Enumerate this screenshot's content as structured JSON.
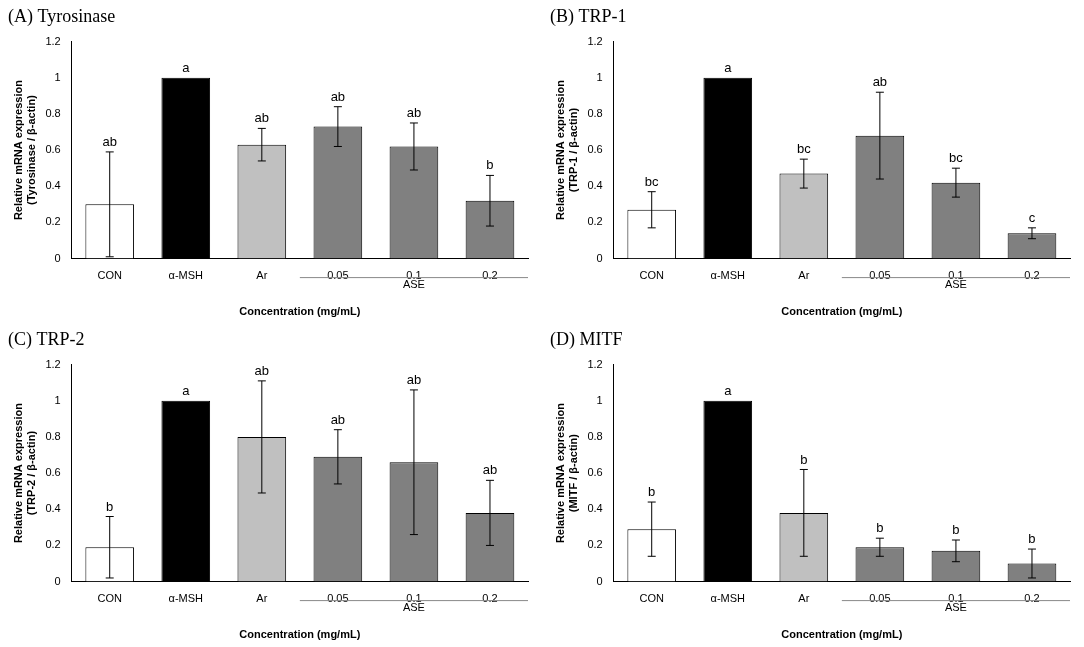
{
  "chart_data": [
    {
      "type": "bar",
      "title": "(A) Tyrosinase",
      "x_label": "Concentration (mg/mL)",
      "y_label": [
        "Relative mRNA expression",
        "(Tyrosinase / β-actin)"
      ],
      "categories": [
        "CON",
        "α-MSH",
        "Ar",
        "0.05",
        "0.1",
        "0.2"
      ],
      "values": [
        0.3,
        1.0,
        0.63,
        0.73,
        0.62,
        0.32
      ],
      "errors": [
        0.29,
        0,
        0.09,
        0.11,
        0.13,
        0.14
      ],
      "annotations": [
        "ab",
        "a",
        "ab",
        "ab",
        "ab",
        "b"
      ],
      "groups": [
        {
          "label": "ASE",
          "categories": [
            "0.05",
            "0.1",
            "0.2"
          ]
        }
      ],
      "colors": [
        "#ffffff",
        "#000000",
        "#c0c0c0",
        "#808080",
        "#808080",
        "#808080"
      ],
      "ylim": [
        0,
        1.2
      ],
      "yticks": [
        0,
        0.2,
        0.4,
        0.6,
        0.8,
        1,
        1.2
      ],
      "grid": false
    },
    {
      "type": "bar",
      "title": "(B) TRP-1",
      "x_label": "Concentration (mg/mL)",
      "y_label": [
        "Relative mRNA expression",
        "(TRP-1 / β-actin)"
      ],
      "categories": [
        "CON",
        "α-MSH",
        "Ar",
        "0.05",
        "0.1",
        "0.2"
      ],
      "values": [
        0.27,
        1.0,
        0.47,
        0.68,
        0.42,
        0.14
      ],
      "errors": [
        0.1,
        0,
        0.08,
        0.24,
        0.08,
        0.03
      ],
      "annotations": [
        "bc",
        "a",
        "bc",
        "ab",
        "bc",
        "c"
      ],
      "groups": [
        {
          "label": "ASE",
          "categories": [
            "0.05",
            "0.1",
            "0.2"
          ]
        }
      ],
      "colors": [
        "#ffffff",
        "#000000",
        "#c0c0c0",
        "#808080",
        "#808080",
        "#808080"
      ],
      "ylim": [
        0,
        1.2
      ],
      "yticks": [
        0,
        0.2,
        0.4,
        0.6,
        0.8,
        1,
        1.2
      ],
      "grid": false
    },
    {
      "type": "bar",
      "title": "(C) TRP-2",
      "x_label": "Concentration (mg/mL)",
      "y_label": [
        "Relative mRNA expression",
        "(TRP-2 / β-actin)"
      ],
      "categories": [
        "CON",
        "α-MSH",
        "Ar",
        "0.05",
        "0.1",
        "0.2"
      ],
      "values": [
        0.19,
        1.0,
        0.8,
        0.69,
        0.66,
        0.38
      ],
      "errors": [
        0.17,
        0,
        0.31,
        0.15,
        0.4,
        0.18
      ],
      "annotations": [
        "b",
        "a",
        "ab",
        "ab",
        "ab",
        "ab"
      ],
      "groups": [
        {
          "label": "ASE",
          "categories": [
            "0.05",
            "0.1",
            "0.2"
          ]
        }
      ],
      "colors": [
        "#ffffff",
        "#000000",
        "#c0c0c0",
        "#808080",
        "#808080",
        "#808080"
      ],
      "ylim": [
        0,
        1.2
      ],
      "yticks": [
        0,
        0.2,
        0.4,
        0.6,
        0.8,
        1,
        1.2
      ],
      "grid": false
    },
    {
      "type": "bar",
      "title": "(D) MITF",
      "x_label": "Concentration (mg/mL)",
      "y_label": [
        "Relative mRNA expression",
        "(MITF / β-actin)"
      ],
      "categories": [
        "CON",
        "α-MSH",
        "Ar",
        "0.05",
        "0.1",
        "0.2"
      ],
      "values": [
        0.29,
        1.0,
        0.38,
        0.19,
        0.17,
        0.1
      ],
      "errors": [
        0.15,
        0,
        0.24,
        0.05,
        0.06,
        0.08
      ],
      "annotations": [
        "b",
        "a",
        "b",
        "b",
        "b",
        "b"
      ],
      "groups": [
        {
          "label": "ASE",
          "categories": [
            "0.05",
            "0.1",
            "0.2"
          ]
        }
      ],
      "colors": [
        "#ffffff",
        "#000000",
        "#c0c0c0",
        "#808080",
        "#808080",
        "#808080"
      ],
      "ylim": [
        0,
        1.2
      ],
      "yticks": [
        0,
        0.2,
        0.4,
        0.6,
        0.8,
        1,
        1.2
      ],
      "grid": false
    }
  ]
}
